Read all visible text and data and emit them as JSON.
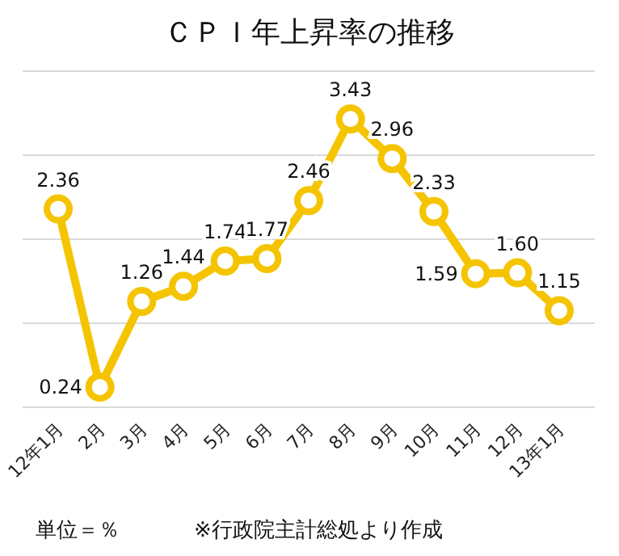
{
  "chart_data": {
    "type": "line",
    "title": "ＣＰＩ年上昇率の推移",
    "categories": [
      "12年1月",
      "2月",
      "3月",
      "4月",
      "5月",
      "6月",
      "7月",
      "8月",
      "9月",
      "10月",
      "11月",
      "12月",
      "13年1月"
    ],
    "values": [
      2.36,
      0.24,
      1.26,
      1.44,
      1.74,
      1.77,
      2.46,
      3.43,
      2.96,
      2.33,
      1.59,
      1.6,
      1.15
    ],
    "color": "#f5c400",
    "ylim": [
      0,
      4
    ],
    "yticks": [
      {
        "value": 0,
        "label": null
      },
      {
        "value": 1,
        "label": null
      },
      {
        "value": 2,
        "label": null
      },
      {
        "value": 3,
        "label": null
      },
      {
        "value": 4,
        "label": null
      }
    ],
    "tick_labels": "x",
    "value_labels": [
      "2.36",
      "0.24",
      "1.26",
      "1.44",
      "1.74",
      "1.77",
      "2.46",
      "3.43",
      "2.96",
      "2.33",
      "1.59",
      "1.60",
      "1.15"
    ],
    "grid": "y",
    "marker": "circle",
    "line_style": "solid",
    "annotations": [
      "単位＝％",
      "※行政院主計総処より作成"
    ]
  }
}
